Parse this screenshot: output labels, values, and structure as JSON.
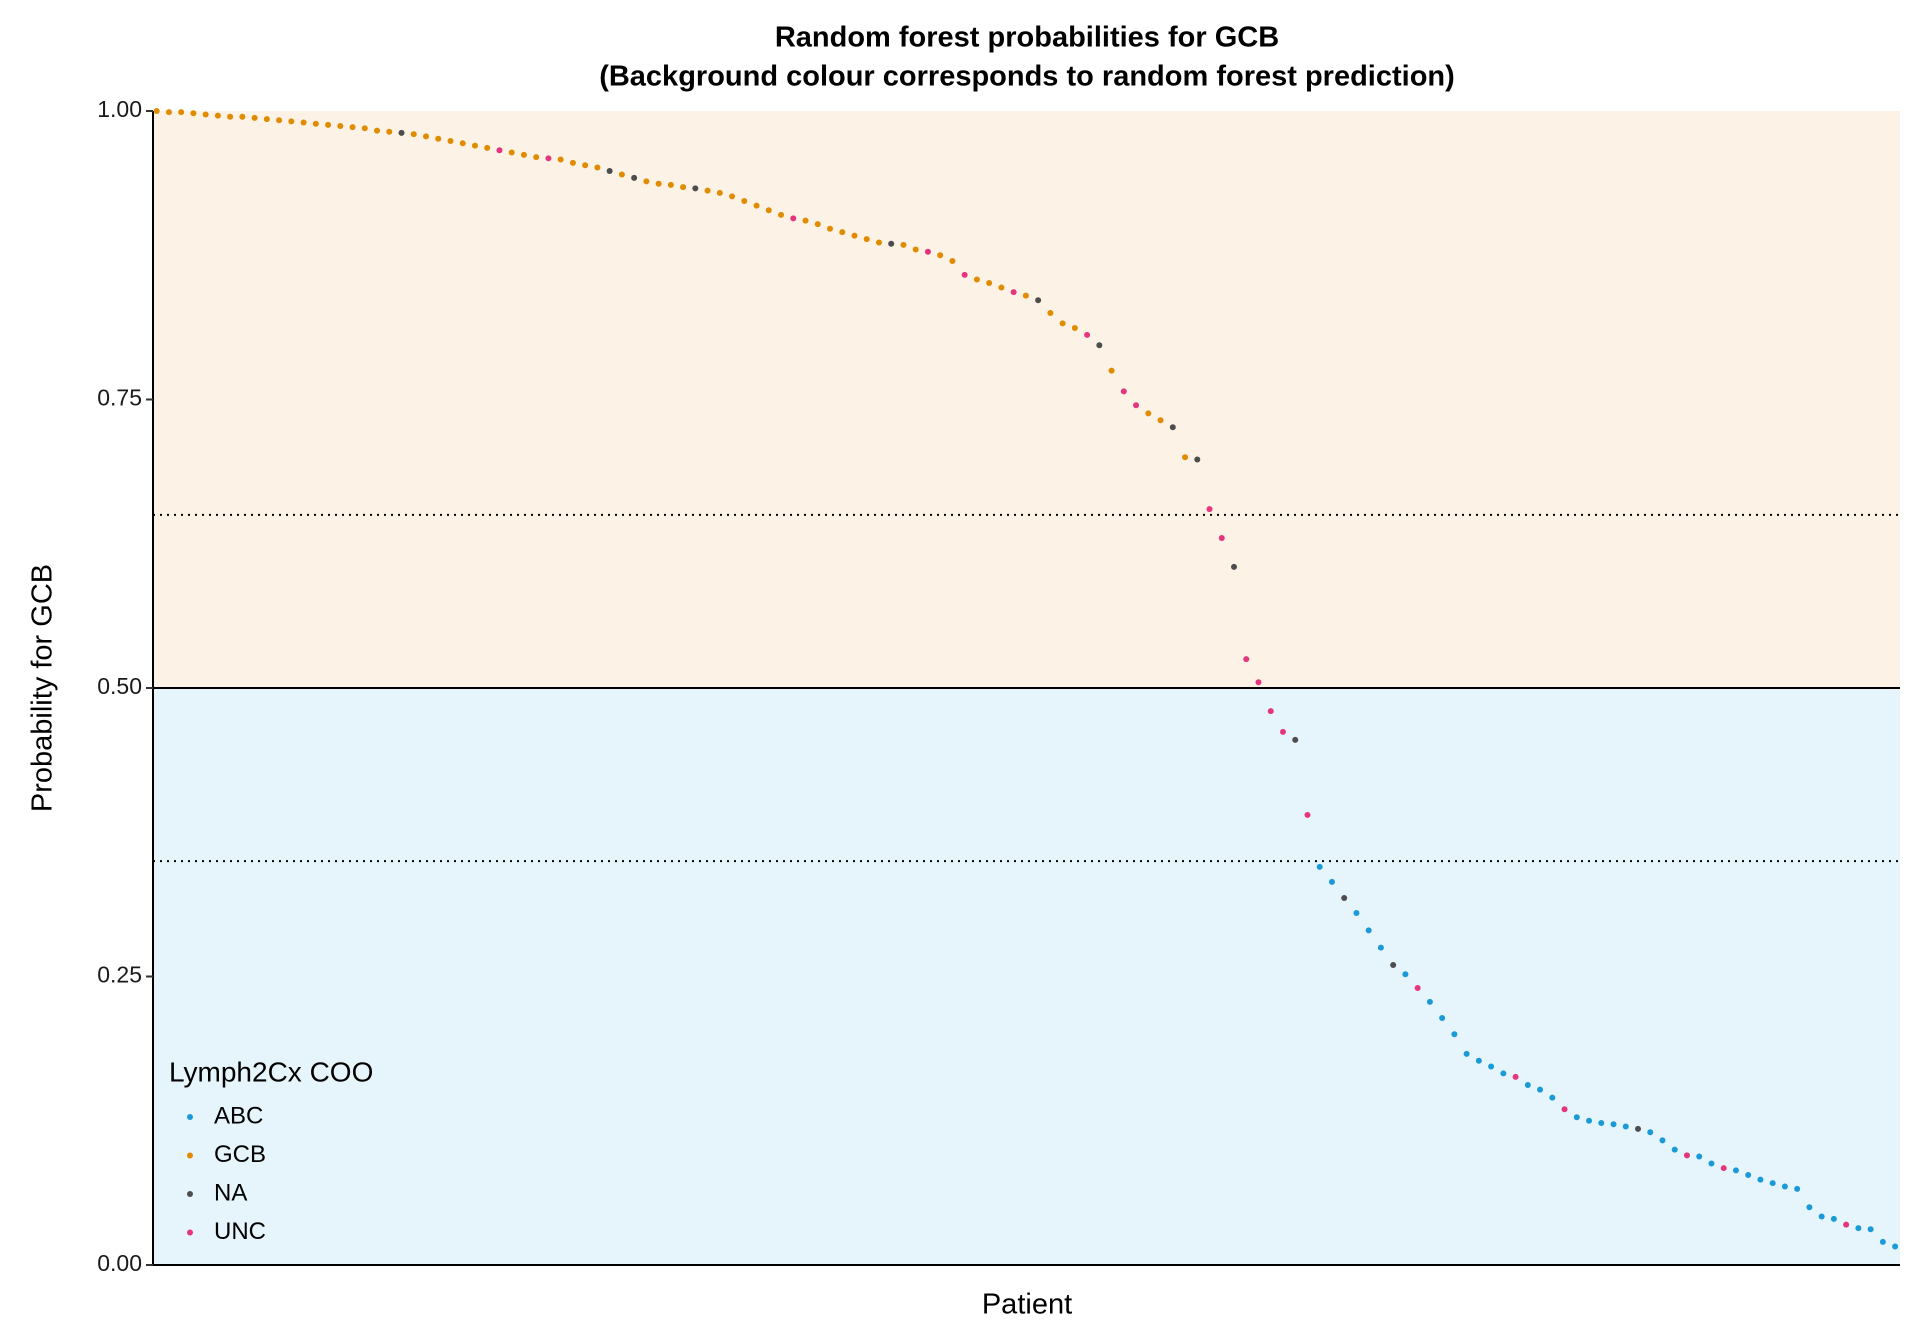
{
  "chart_data": {
    "type": "scatter",
    "title": "Random forest probabilities for GCB",
    "subtitle": "(Background colour corresponds to random forest prediction)",
    "xlabel": "Patient",
    "ylabel": "Probability for GCB",
    "legend_title": "Lymph2Cx COO",
    "legend_position": "bottom-left",
    "xlim": [
      0.7,
      143.4
    ],
    "ylim": [
      0,
      1
    ],
    "yticks": [
      {
        "value": 0,
        "label": "0.00"
      },
      {
        "value": 0.25,
        "label": "0.25"
      },
      {
        "value": 0.5,
        "label": "0.50"
      },
      {
        "value": 0.75,
        "label": "0.75"
      },
      {
        "value": 1,
        "label": "1.00"
      }
    ],
    "prediction_cutoff": 0.5,
    "thresholds": [
      0.35,
      0.65
    ],
    "background_colors": {
      "below": "#e6f4fb",
      "above": "#fdf2e6"
    },
    "series": [
      {
        "name": "ABC",
        "color": "#1a9ad6",
        "x": [
          96,
          97,
          99,
          100,
          101,
          103,
          105,
          106,
          107,
          108,
          109,
          110,
          111,
          113,
          114,
          115,
          117,
          118,
          119,
          120,
          121,
          123,
          124,
          125,
          127,
          128,
          130,
          131,
          132,
          133,
          134,
          135,
          136,
          137,
          138,
          140,
          141,
          142,
          143
        ],
        "values": [
          0.345,
          0.332,
          0.305,
          0.29,
          0.275,
          0.252,
          0.228,
          0.214,
          0.2,
          0.183,
          0.177,
          0.172,
          0.166,
          0.156,
          0.152,
          0.145,
          0.128,
          0.125,
          0.123,
          0.122,
          0.12,
          0.115,
          0.108,
          0.1,
          0.094,
          0.088,
          0.082,
          0.078,
          0.074,
          0.071,
          0.068,
          0.066,
          0.05,
          0.042,
          0.04,
          0.032,
          0.031,
          0.02,
          0.016
        ]
      },
      {
        "name": "GCB",
        "color": "#e08b00",
        "x": [
          1,
          2,
          3,
          4,
          5,
          6,
          7,
          8,
          9,
          10,
          11,
          12,
          13,
          14,
          15,
          16,
          17,
          18,
          19,
          20,
          22,
          23,
          24,
          25,
          26,
          27,
          28,
          30,
          31,
          32,
          34,
          35,
          36,
          37,
          39,
          41,
          42,
          43,
          44,
          46,
          47,
          48,
          49,
          50,
          51,
          52,
          54,
          55,
          56,
          57,
          58,
          59,
          60,
          62,
          63,
          65,
          66,
          68,
          69,
          70,
          72,
          74,
          75,
          76,
          79,
          82,
          83,
          85
        ],
        "values": [
          1.0,
          0.999,
          0.999,
          0.998,
          0.997,
          0.996,
          0.995,
          0.995,
          0.994,
          0.993,
          0.992,
          0.991,
          0.99,
          0.989,
          0.988,
          0.987,
          0.986,
          0.985,
          0.983,
          0.982,
          0.98,
          0.978,
          0.976,
          0.974,
          0.972,
          0.97,
          0.968,
          0.964,
          0.962,
          0.96,
          0.958,
          0.955,
          0.953,
          0.951,
          0.945,
          0.939,
          0.937,
          0.936,
          0.934,
          0.931,
          0.929,
          0.926,
          0.922,
          0.918,
          0.914,
          0.91,
          0.905,
          0.902,
          0.898,
          0.895,
          0.892,
          0.889,
          0.886,
          0.884,
          0.88,
          0.875,
          0.87,
          0.854,
          0.851,
          0.847,
          0.84,
          0.825,
          0.816,
          0.812,
          0.775,
          0.738,
          0.732,
          0.7
        ]
      },
      {
        "name": "NA",
        "color": "#4d4d4d",
        "x": [
          21,
          38,
          40,
          45,
          61,
          73,
          78,
          84,
          86,
          89,
          94,
          98,
          102,
          122
        ],
        "values": [
          0.981,
          0.948,
          0.942,
          0.933,
          0.885,
          0.836,
          0.797,
          0.726,
          0.698,
          0.605,
          0.455,
          0.318,
          0.26,
          0.118
        ]
      },
      {
        "name": "UNC",
        "color": "#e6357f",
        "x": [
          29,
          33,
          53,
          64,
          67,
          71,
          77,
          80,
          81,
          87,
          88,
          90,
          91,
          92,
          93,
          95,
          104,
          112,
          116,
          126,
          129,
          139
        ],
        "values": [
          0.966,
          0.959,
          0.907,
          0.878,
          0.858,
          0.843,
          0.806,
          0.757,
          0.745,
          0.655,
          0.63,
          0.525,
          0.505,
          0.48,
          0.462,
          0.39,
          0.24,
          0.163,
          0.135,
          0.095,
          0.084,
          0.035
        ]
      }
    ]
  }
}
